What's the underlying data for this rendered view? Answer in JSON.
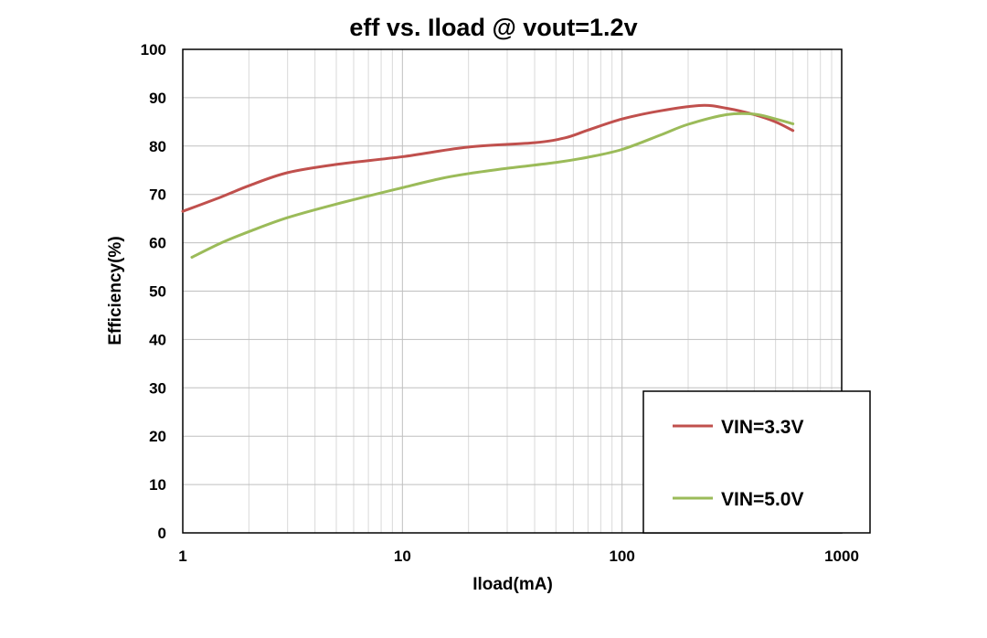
{
  "chart_data": {
    "type": "line",
    "title": "eff vs. Iload @ vout=1.2v",
    "xlabel": "Iload(mA)",
    "ylabel": "Efficiency(%)",
    "x_scale": "log",
    "xlim": [
      1,
      1000
    ],
    "ylim": [
      0,
      100
    ],
    "x_ticks": [
      1,
      10,
      100,
      1000
    ],
    "x_tick_labels": [
      "1",
      "10",
      "100",
      "1000"
    ],
    "y_ticks": [
      0,
      10,
      20,
      30,
      40,
      50,
      60,
      70,
      80,
      90,
      100
    ],
    "y_tick_labels": [
      "0",
      "10",
      "20",
      "30",
      "40",
      "50",
      "60",
      "70",
      "80",
      "90",
      "100"
    ],
    "grid": true,
    "legend_position": "bottom-right",
    "series": [
      {
        "name": "VIN=3.3V",
        "color": "#c0504d",
        "x": [
          1,
          1.5,
          2,
          3,
          5,
          10,
          20,
          40,
          55,
          70,
          100,
          150,
          230,
          300,
          400,
          500,
          600
        ],
        "y": [
          66.5,
          69.5,
          71.8,
          74.5,
          76.2,
          77.8,
          79.8,
          80.7,
          81.7,
          83.3,
          85.6,
          87.3,
          88.4,
          87.8,
          86.5,
          85,
          83.2
        ]
      },
      {
        "name": "VIN=5.0V",
        "color": "#9bbb59",
        "x": [
          1.1,
          1.5,
          2,
          3,
          5,
          10,
          15,
          20,
          30,
          50,
          70,
          100,
          150,
          200,
          300,
          400,
          500,
          600
        ],
        "y": [
          57,
          60,
          62.3,
          65.2,
          68,
          71.4,
          73.3,
          74.3,
          75.4,
          76.6,
          77.7,
          79.3,
          82.3,
          84.5,
          86.5,
          86.6,
          85.6,
          84.6
        ]
      }
    ]
  }
}
